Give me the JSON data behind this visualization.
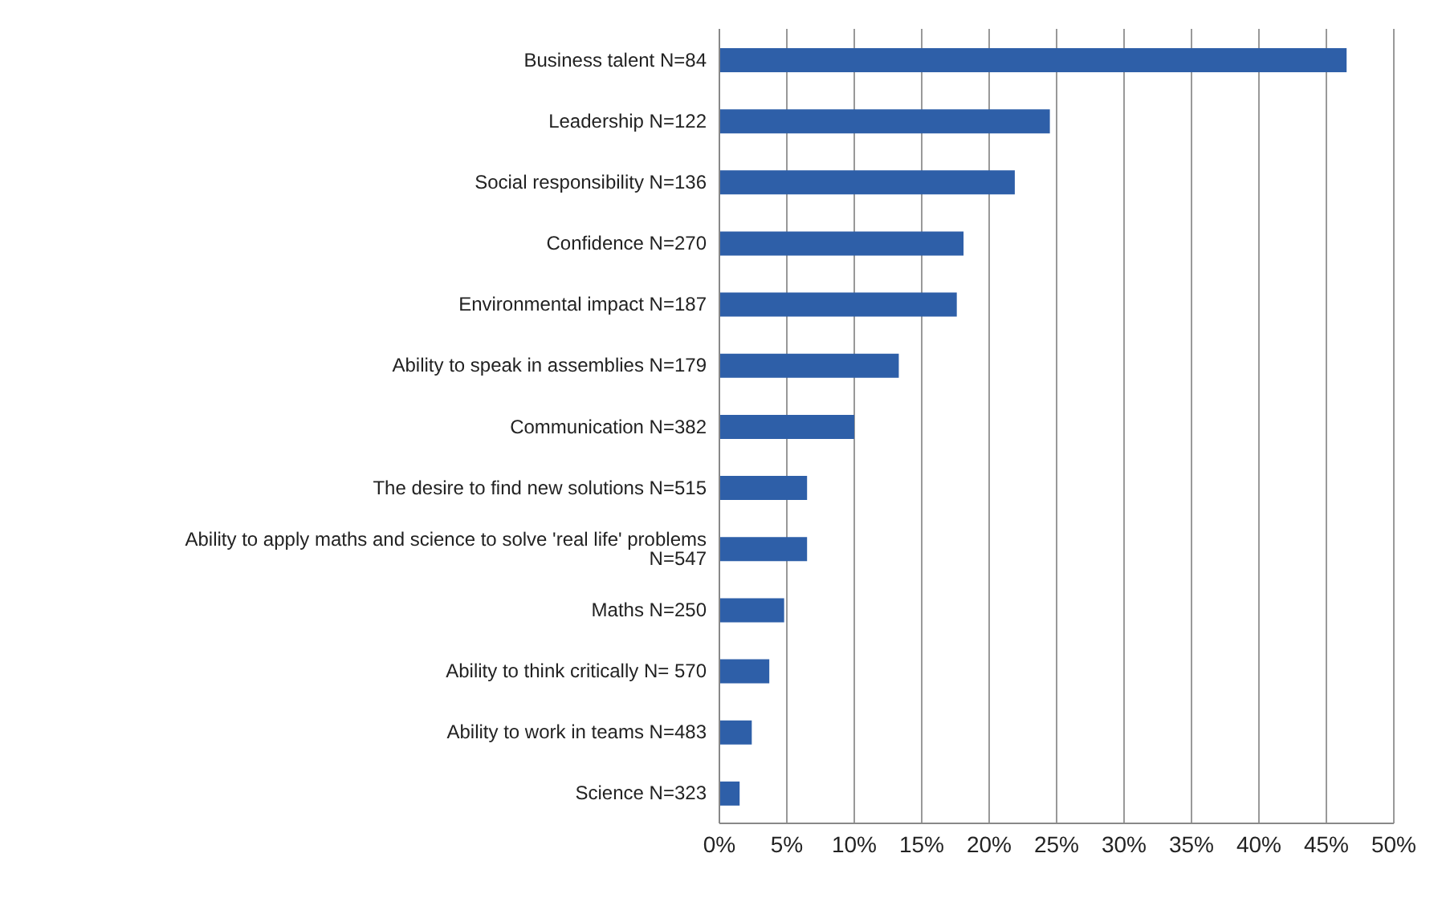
{
  "chart_data": {
    "type": "bar",
    "orientation": "horizontal",
    "categories": [
      "Business talent N=84",
      "Leadership N=122",
      "Social responsibility N=136",
      "Confidence N=270",
      "Environmental impact N=187",
      "Ability to speak in assemblies N=179",
      "Communication N=382",
      "The desire to find new solutions N=515",
      "Ability to apply maths and science to solve 'real life' problems N=547",
      "Maths N=250",
      "Ability to think critically N= 570",
      "Ability to work in teams N=483",
      "Science N=323"
    ],
    "values": [
      46.5,
      24.5,
      21.9,
      18.1,
      17.6,
      13.3,
      10.0,
      6.5,
      6.5,
      4.8,
      3.7,
      2.4,
      1.5
    ],
    "color": "#2e5fa8",
    "xlim": [
      0,
      50
    ],
    "xticks": [
      {
        "value": 0,
        "label": "0%"
      },
      {
        "value": 5,
        "label": "5%"
      },
      {
        "value": 10,
        "label": "10%"
      },
      {
        "value": 15,
        "label": "15%"
      },
      {
        "value": 20,
        "label": "20%"
      },
      {
        "value": 25,
        "label": "25%"
      },
      {
        "value": 30,
        "label": "30%"
      },
      {
        "value": 35,
        "label": "35%"
      },
      {
        "value": 40,
        "label": "40%"
      },
      {
        "value": 45,
        "label": "45%"
      },
      {
        "value": 50,
        "label": "50%"
      }
    ],
    "grid": "x"
  }
}
